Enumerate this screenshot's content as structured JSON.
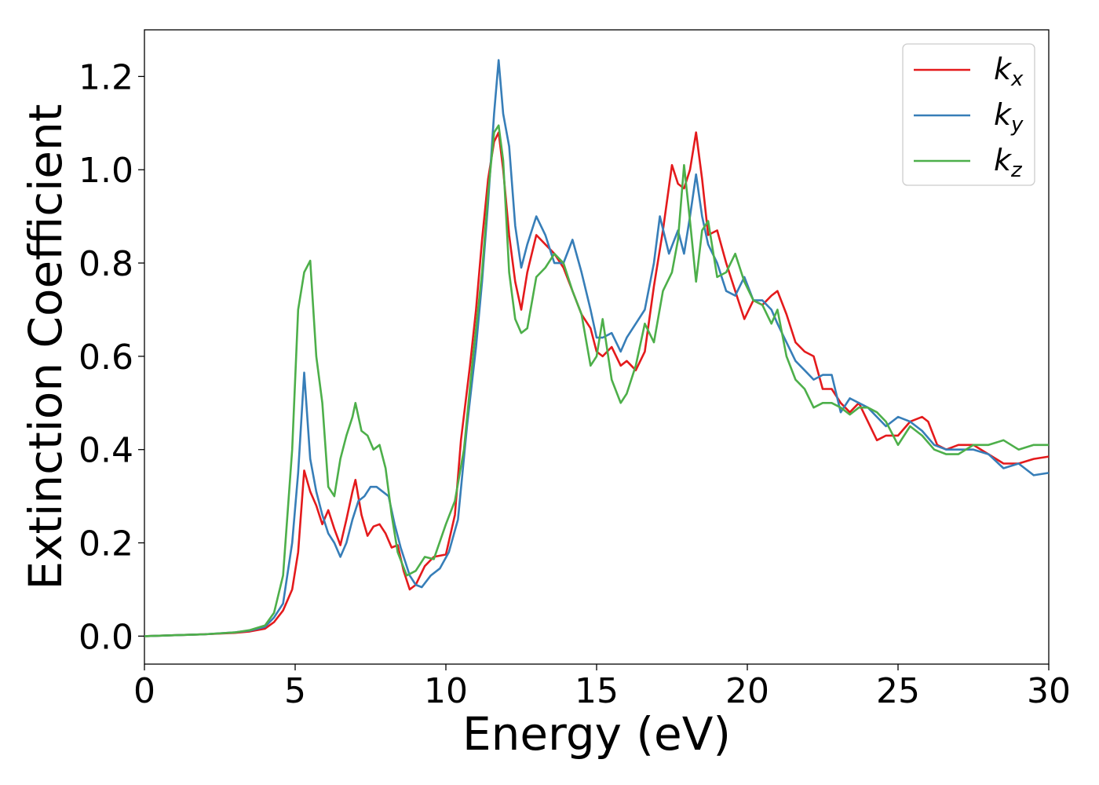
{
  "chart_data": {
    "type": "line",
    "title": "",
    "xlabel": "Energy (eV)",
    "ylabel": "Extinction Coefficient",
    "xlim": [
      0,
      30
    ],
    "ylim": [
      -0.06,
      1.3
    ],
    "xticks": [
      0,
      5,
      10,
      15,
      20,
      25,
      30
    ],
    "xtick_labels": [
      "0",
      "5",
      "10",
      "15",
      "20",
      "25",
      "30"
    ],
    "yticks": [
      0.0,
      0.2,
      0.4,
      0.6,
      0.8,
      1.0,
      1.2
    ],
    "ytick_labels": [
      "0.0",
      "0.2",
      "0.4",
      "0.6",
      "0.8",
      "1.0",
      "1.2"
    ],
    "grid": false,
    "legend_position": "top-right",
    "series": [
      {
        "name": "k",
        "subscript": "x",
        "color": "#e41a1c",
        "x": [
          0,
          1,
          2,
          3,
          3.5,
          4,
          4.3,
          4.6,
          4.9,
          5.1,
          5.3,
          5.5,
          5.7,
          5.9,
          6.1,
          6.3,
          6.5,
          6.7,
          6.9,
          7.0,
          7.2,
          7.4,
          7.6,
          7.8,
          8.0,
          8.2,
          8.4,
          8.6,
          8.8,
          9.0,
          9.3,
          9.6,
          10.0,
          10.3,
          10.5,
          10.8,
          11.0,
          11.2,
          11.4,
          11.6,
          11.75,
          11.9,
          12.1,
          12.3,
          12.5,
          12.7,
          13.0,
          13.3,
          13.6,
          13.9,
          14.2,
          14.5,
          14.8,
          15.0,
          15.2,
          15.5,
          15.8,
          16.0,
          16.3,
          16.6,
          16.9,
          17.2,
          17.5,
          17.7,
          17.9,
          18.1,
          18.3,
          18.5,
          18.7,
          19.0,
          19.3,
          19.6,
          19.9,
          20.2,
          20.5,
          20.8,
          21.0,
          21.3,
          21.6,
          21.9,
          22.2,
          22.5,
          22.8,
          23.1,
          23.4,
          23.7,
          24.0,
          24.3,
          24.6,
          25.0,
          25.4,
          25.8,
          26.0,
          26.3,
          26.6,
          27.0,
          27.5,
          28.0,
          28.5,
          29.0,
          29.5,
          30.0
        ],
        "y": [
          0.0,
          0.002,
          0.004,
          0.007,
          0.01,
          0.016,
          0.03,
          0.055,
          0.1,
          0.18,
          0.355,
          0.31,
          0.28,
          0.24,
          0.27,
          0.23,
          0.195,
          0.25,
          0.31,
          0.335,
          0.26,
          0.215,
          0.235,
          0.24,
          0.22,
          0.19,
          0.195,
          0.14,
          0.1,
          0.11,
          0.15,
          0.17,
          0.175,
          0.26,
          0.42,
          0.58,
          0.7,
          0.85,
          0.98,
          1.06,
          1.08,
          1.0,
          0.86,
          0.76,
          0.7,
          0.78,
          0.86,
          0.84,
          0.82,
          0.79,
          0.74,
          0.69,
          0.66,
          0.61,
          0.6,
          0.62,
          0.58,
          0.59,
          0.57,
          0.61,
          0.75,
          0.87,
          1.01,
          0.97,
          0.96,
          1.0,
          1.08,
          0.98,
          0.86,
          0.87,
          0.8,
          0.74,
          0.68,
          0.72,
          0.71,
          0.73,
          0.74,
          0.69,
          0.63,
          0.61,
          0.6,
          0.53,
          0.53,
          0.5,
          0.48,
          0.5,
          0.46,
          0.42,
          0.43,
          0.43,
          0.46,
          0.47,
          0.46,
          0.41,
          0.4,
          0.41,
          0.41,
          0.39,
          0.37,
          0.37,
          0.38,
          0.385
        ]
      },
      {
        "name": "k",
        "subscript": "y",
        "color": "#377eb8",
        "x": [
          0,
          1,
          2,
          3,
          3.5,
          4,
          4.3,
          4.6,
          4.9,
          5.1,
          5.3,
          5.5,
          5.7,
          5.9,
          6.1,
          6.3,
          6.5,
          6.7,
          6.9,
          7.1,
          7.3,
          7.5,
          7.7,
          7.9,
          8.1,
          8.3,
          8.5,
          8.8,
          9.0,
          9.2,
          9.5,
          9.8,
          10.1,
          10.4,
          10.7,
          11.0,
          11.2,
          11.4,
          11.6,
          11.75,
          11.9,
          12.1,
          12.3,
          12.5,
          12.7,
          13.0,
          13.3,
          13.6,
          13.9,
          14.2,
          14.5,
          14.8,
          15.0,
          15.2,
          15.5,
          15.8,
          16.0,
          16.3,
          16.6,
          16.9,
          17.1,
          17.4,
          17.7,
          17.9,
          18.1,
          18.3,
          18.5,
          18.7,
          19.0,
          19.3,
          19.6,
          19.9,
          20.2,
          20.5,
          20.8,
          21.0,
          21.3,
          21.6,
          21.9,
          22.2,
          22.5,
          22.8,
          23.1,
          23.4,
          23.7,
          24.0,
          24.3,
          24.6,
          25.0,
          25.4,
          25.8,
          26.2,
          26.6,
          27.0,
          27.5,
          28.0,
          28.5,
          29.0,
          29.5,
          30.0
        ],
        "y": [
          0.0,
          0.002,
          0.004,
          0.008,
          0.012,
          0.02,
          0.04,
          0.07,
          0.2,
          0.35,
          0.565,
          0.38,
          0.31,
          0.26,
          0.22,
          0.2,
          0.17,
          0.2,
          0.25,
          0.29,
          0.3,
          0.32,
          0.32,
          0.31,
          0.3,
          0.24,
          0.19,
          0.13,
          0.11,
          0.105,
          0.13,
          0.145,
          0.18,
          0.25,
          0.45,
          0.62,
          0.76,
          0.93,
          1.12,
          1.235,
          1.12,
          1.05,
          0.88,
          0.79,
          0.84,
          0.9,
          0.86,
          0.8,
          0.8,
          0.85,
          0.78,
          0.7,
          0.64,
          0.64,
          0.65,
          0.61,
          0.64,
          0.67,
          0.7,
          0.8,
          0.9,
          0.82,
          0.87,
          0.82,
          0.9,
          0.99,
          0.9,
          0.84,
          0.8,
          0.74,
          0.73,
          0.77,
          0.72,
          0.72,
          0.7,
          0.67,
          0.63,
          0.59,
          0.57,
          0.55,
          0.56,
          0.56,
          0.48,
          0.51,
          0.5,
          0.49,
          0.47,
          0.45,
          0.47,
          0.46,
          0.44,
          0.41,
          0.4,
          0.4,
          0.4,
          0.39,
          0.36,
          0.37,
          0.345,
          0.35
        ]
      },
      {
        "name": "k",
        "subscript": "z",
        "color": "#4daf4a",
        "x": [
          0,
          1,
          2,
          3,
          3.5,
          4,
          4.3,
          4.6,
          4.9,
          5.1,
          5.3,
          5.5,
          5.7,
          5.9,
          6.1,
          6.3,
          6.5,
          6.7,
          6.9,
          7.0,
          7.2,
          7.4,
          7.6,
          7.8,
          8.0,
          8.2,
          8.4,
          8.7,
          9.0,
          9.3,
          9.6,
          10.0,
          10.3,
          10.6,
          10.9,
          11.2,
          11.4,
          11.6,
          11.75,
          11.9,
          12.1,
          12.3,
          12.5,
          12.7,
          13.0,
          13.3,
          13.6,
          13.9,
          14.2,
          14.5,
          14.8,
          15.0,
          15.2,
          15.5,
          15.8,
          16.0,
          16.3,
          16.6,
          16.9,
          17.2,
          17.5,
          17.7,
          17.9,
          18.1,
          18.3,
          18.5,
          18.7,
          19.0,
          19.3,
          19.6,
          19.9,
          20.2,
          20.5,
          20.8,
          21.0,
          21.3,
          21.6,
          21.9,
          22.2,
          22.5,
          22.8,
          23.1,
          23.4,
          23.7,
          24.0,
          24.3,
          24.6,
          25.0,
          25.4,
          25.8,
          26.2,
          26.6,
          27.0,
          27.5,
          28.0,
          28.5,
          29.0,
          29.5,
          30.0
        ],
        "y": [
          0.0,
          0.002,
          0.004,
          0.008,
          0.013,
          0.023,
          0.05,
          0.13,
          0.4,
          0.7,
          0.78,
          0.805,
          0.6,
          0.5,
          0.32,
          0.3,
          0.38,
          0.43,
          0.47,
          0.5,
          0.44,
          0.43,
          0.4,
          0.41,
          0.36,
          0.26,
          0.18,
          0.13,
          0.14,
          0.17,
          0.165,
          0.24,
          0.29,
          0.4,
          0.6,
          0.78,
          0.95,
          1.08,
          1.095,
          1.02,
          0.78,
          0.68,
          0.65,
          0.66,
          0.77,
          0.79,
          0.82,
          0.8,
          0.74,
          0.69,
          0.58,
          0.6,
          0.68,
          0.55,
          0.5,
          0.52,
          0.58,
          0.67,
          0.63,
          0.74,
          0.78,
          0.85,
          1.01,
          0.89,
          0.76,
          0.87,
          0.89,
          0.77,
          0.78,
          0.82,
          0.76,
          0.72,
          0.71,
          0.67,
          0.7,
          0.6,
          0.55,
          0.53,
          0.49,
          0.5,
          0.5,
          0.49,
          0.475,
          0.49,
          0.49,
          0.48,
          0.46,
          0.41,
          0.45,
          0.43,
          0.4,
          0.39,
          0.39,
          0.41,
          0.41,
          0.42,
          0.4,
          0.41,
          0.41
        ]
      }
    ]
  }
}
